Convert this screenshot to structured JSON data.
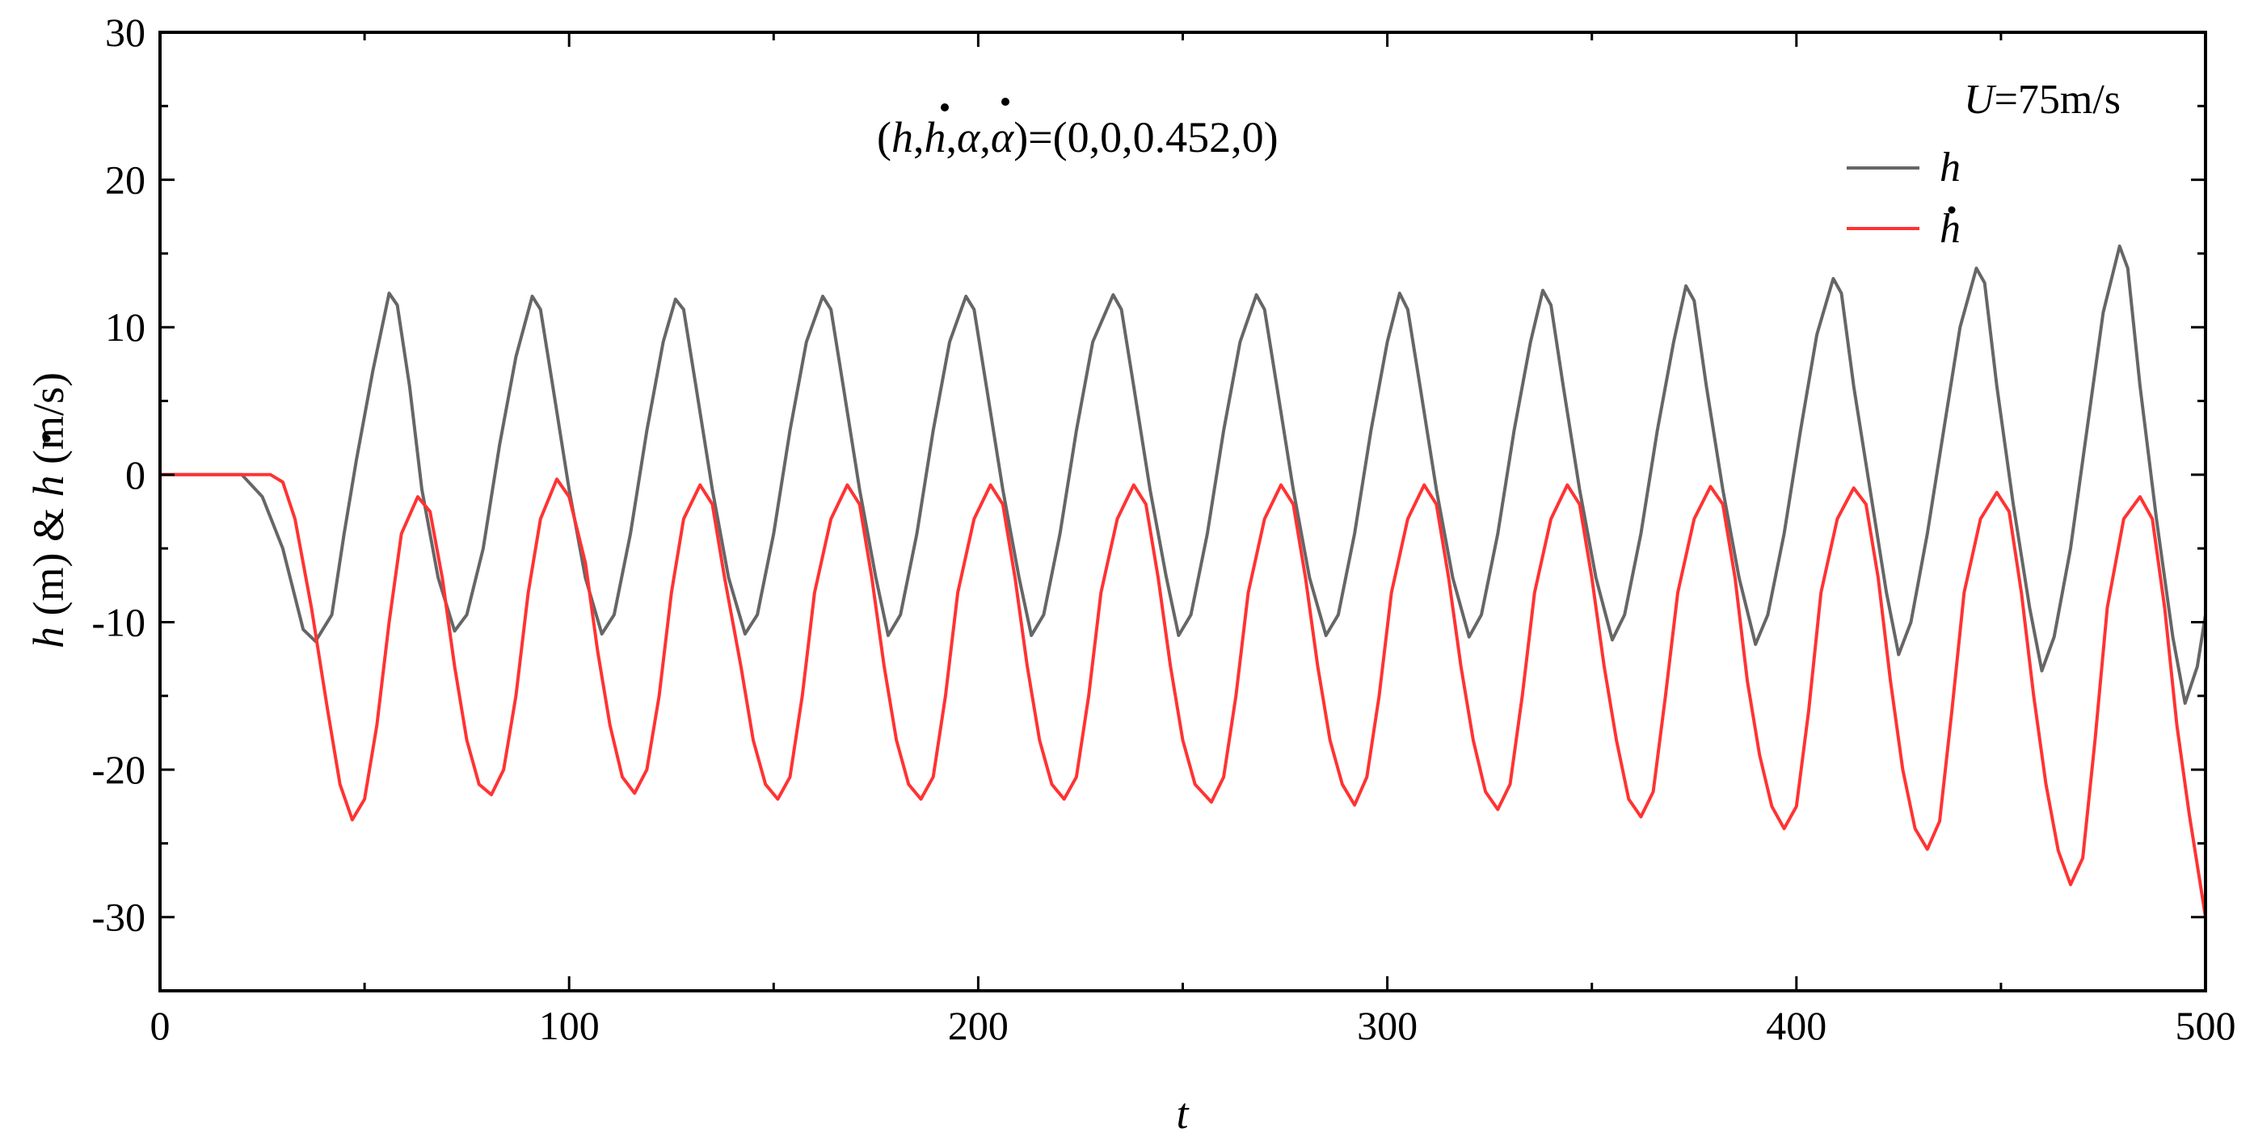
{
  "chart_data": {
    "type": "line",
    "annotation": "(h,h,α,α)=(0,0,0.452,0)",
    "xlabel": "t",
    "ylabel": "h (m) & h (m/s)",
    "xlim": [
      0,
      500
    ],
    "ylim": [
      -35,
      30
    ],
    "x_ticks": [
      "0",
      "100",
      "200",
      "300",
      "400",
      "500"
    ],
    "y_ticks": [
      "30",
      "20",
      "10",
      "0",
      "-10",
      "-20",
      "-30"
    ],
    "grid": false,
    "legend": {
      "placement": "top-right",
      "title": "U=75m/s"
    },
    "series": [
      {
        "name": "h",
        "color": "#666666",
        "points": [
          [
            0,
            0
          ],
          [
            20,
            0
          ],
          [
            25,
            -1.5
          ],
          [
            30,
            -5
          ],
          [
            35,
            -10.5
          ],
          [
            38,
            -11.3
          ],
          [
            42,
            -9.5
          ],
          [
            45,
            -4
          ],
          [
            48,
            1
          ],
          [
            52,
            7
          ],
          [
            56,
            12.3
          ],
          [
            58,
            11.5
          ],
          [
            61,
            6
          ],
          [
            64,
            -1
          ],
          [
            68,
            -7
          ],
          [
            72,
            -10.6
          ],
          [
            75,
            -9.5
          ],
          [
            79,
            -5
          ],
          [
            83,
            2
          ],
          [
            87,
            8
          ],
          [
            91,
            12.1
          ],
          [
            93,
            11.2
          ],
          [
            96,
            6
          ],
          [
            100,
            -1
          ],
          [
            104,
            -7
          ],
          [
            108,
            -10.8
          ],
          [
            111,
            -9.5
          ],
          [
            115,
            -4
          ],
          [
            119,
            3
          ],
          [
            123,
            9
          ],
          [
            126,
            11.9
          ],
          [
            128,
            11.2
          ],
          [
            131,
            6
          ],
          [
            135,
            -1
          ],
          [
            139,
            -7
          ],
          [
            143,
            -10.8
          ],
          [
            146,
            -9.5
          ],
          [
            150,
            -4
          ],
          [
            154,
            3
          ],
          [
            158,
            9
          ],
          [
            162,
            12.1
          ],
          [
            164,
            11.2
          ],
          [
            167,
            6
          ],
          [
            171,
            -1
          ],
          [
            175,
            -7
          ],
          [
            178,
            -10.9
          ],
          [
            181,
            -9.5
          ],
          [
            185,
            -4
          ],
          [
            189,
            3
          ],
          [
            193,
            9
          ],
          [
            197,
            12.1
          ],
          [
            199,
            11.2
          ],
          [
            202,
            6
          ],
          [
            206,
            -1
          ],
          [
            210,
            -7
          ],
          [
            213,
            -10.9
          ],
          [
            216,
            -9.5
          ],
          [
            220,
            -4
          ],
          [
            224,
            3
          ],
          [
            228,
            9
          ],
          [
            233,
            12.2
          ],
          [
            235,
            11.2
          ],
          [
            238,
            6
          ],
          [
            242,
            -1
          ],
          [
            246,
            -7
          ],
          [
            249,
            -10.9
          ],
          [
            252,
            -9.5
          ],
          [
            256,
            -4
          ],
          [
            260,
            3
          ],
          [
            264,
            9
          ],
          [
            268,
            12.2
          ],
          [
            270,
            11.2
          ],
          [
            273,
            6
          ],
          [
            277,
            -1
          ],
          [
            281,
            -7
          ],
          [
            285,
            -10.9
          ],
          [
            288,
            -9.5
          ],
          [
            292,
            -4
          ],
          [
            296,
            3
          ],
          [
            300,
            9
          ],
          [
            303,
            12.3
          ],
          [
            305,
            11.2
          ],
          [
            308,
            6
          ],
          [
            312,
            -1
          ],
          [
            316,
            -7
          ],
          [
            320,
            -11
          ],
          [
            323,
            -9.5
          ],
          [
            327,
            -4
          ],
          [
            331,
            3
          ],
          [
            335,
            9
          ],
          [
            338,
            12.5
          ],
          [
            340,
            11.5
          ],
          [
            343,
            6
          ],
          [
            347,
            -1
          ],
          [
            351,
            -7
          ],
          [
            355,
            -11.2
          ],
          [
            358,
            -9.5
          ],
          [
            362,
            -4
          ],
          [
            366,
            3
          ],
          [
            370,
            9
          ],
          [
            373,
            12.8
          ],
          [
            375,
            11.8
          ],
          [
            378,
            6
          ],
          [
            382,
            -1
          ],
          [
            386,
            -7
          ],
          [
            390,
            -11.5
          ],
          [
            393,
            -9.5
          ],
          [
            397,
            -4
          ],
          [
            401,
            3
          ],
          [
            405,
            9.5
          ],
          [
            409,
            13.3
          ],
          [
            411,
            12.3
          ],
          [
            414,
            6
          ],
          [
            418,
            -1
          ],
          [
            422,
            -8
          ],
          [
            425,
            -12.2
          ],
          [
            428,
            -10
          ],
          [
            432,
            -4
          ],
          [
            436,
            3
          ],
          [
            440,
            10
          ],
          [
            444,
            14
          ],
          [
            446,
            13
          ],
          [
            449,
            6
          ],
          [
            453,
            -2
          ],
          [
            457,
            -9
          ],
          [
            460,
            -13.3
          ],
          [
            463,
            -11
          ],
          [
            467,
            -5
          ],
          [
            471,
            3
          ],
          [
            475,
            11
          ],
          [
            479,
            15.5
          ],
          [
            481,
            14
          ],
          [
            484,
            6
          ],
          [
            488,
            -3
          ],
          [
            492,
            -11
          ],
          [
            495,
            -15.5
          ],
          [
            498,
            -13
          ],
          [
            500,
            -9.5
          ]
        ]
      },
      {
        "name": "h",
        "color": "#ff3333",
        "points": [
          [
            0,
            0
          ],
          [
            27,
            0
          ],
          [
            30,
            -0.5
          ],
          [
            33,
            -3
          ],
          [
            37,
            -9
          ],
          [
            41,
            -16
          ],
          [
            44,
            -21
          ],
          [
            47,
            -23.4
          ],
          [
            50,
            -22
          ],
          [
            53,
            -17
          ],
          [
            56,
            -10
          ],
          [
            59,
            -4
          ],
          [
            63,
            -1.5
          ],
          [
            66,
            -2.5
          ],
          [
            69,
            -7
          ],
          [
            72,
            -13
          ],
          [
            75,
            -18
          ],
          [
            78,
            -21
          ],
          [
            81,
            -21.7
          ],
          [
            84,
            -20
          ],
          [
            87,
            -15
          ],
          [
            90,
            -8
          ],
          [
            93,
            -3
          ],
          [
            97,
            -0.3
          ],
          [
            100,
            -1.5
          ],
          [
            104,
            -6
          ],
          [
            107,
            -12
          ],
          [
            110,
            -17
          ],
          [
            113,
            -20.5
          ],
          [
            116,
            -21.6
          ],
          [
            119,
            -20
          ],
          [
            122,
            -15
          ],
          [
            125,
            -8
          ],
          [
            128,
            -3
          ],
          [
            132,
            -0.7
          ],
          [
            135,
            -2
          ],
          [
            138,
            -7
          ],
          [
            142,
            -13
          ],
          [
            145,
            -18
          ],
          [
            148,
            -21
          ],
          [
            151,
            -22
          ],
          [
            154,
            -20.5
          ],
          [
            157,
            -15
          ],
          [
            160,
            -8
          ],
          [
            164,
            -3
          ],
          [
            168,
            -0.7
          ],
          [
            171,
            -2
          ],
          [
            174,
            -7
          ],
          [
            177,
            -13
          ],
          [
            180,
            -18
          ],
          [
            183,
            -21
          ],
          [
            186,
            -22
          ],
          [
            189,
            -20.5
          ],
          [
            192,
            -15
          ],
          [
            195,
            -8
          ],
          [
            199,
            -3
          ],
          [
            203,
            -0.7
          ],
          [
            206,
            -2
          ],
          [
            209,
            -7
          ],
          [
            212,
            -13
          ],
          [
            215,
            -18
          ],
          [
            218,
            -21
          ],
          [
            221,
            -22
          ],
          [
            224,
            -20.5
          ],
          [
            227,
            -15
          ],
          [
            230,
            -8
          ],
          [
            234,
            -3
          ],
          [
            238,
            -0.7
          ],
          [
            241,
            -2
          ],
          [
            244,
            -7
          ],
          [
            247,
            -13
          ],
          [
            250,
            -18
          ],
          [
            253,
            -21
          ],
          [
            257,
            -22.2
          ],
          [
            260,
            -20.5
          ],
          [
            263,
            -15
          ],
          [
            266,
            -8
          ],
          [
            270,
            -3
          ],
          [
            274,
            -0.7
          ],
          [
            277,
            -2
          ],
          [
            280,
            -7
          ],
          [
            283,
            -13
          ],
          [
            286,
            -18
          ],
          [
            289,
            -21
          ],
          [
            292,
            -22.4
          ],
          [
            295,
            -20.5
          ],
          [
            298,
            -15
          ],
          [
            301,
            -8
          ],
          [
            305,
            -3
          ],
          [
            309,
            -0.7
          ],
          [
            312,
            -2
          ],
          [
            315,
            -7
          ],
          [
            318,
            -13
          ],
          [
            321,
            -18
          ],
          [
            324,
            -21.5
          ],
          [
            327,
            -22.7
          ],
          [
            330,
            -21
          ],
          [
            333,
            -15
          ],
          [
            336,
            -8
          ],
          [
            340,
            -3
          ],
          [
            344,
            -0.7
          ],
          [
            347,
            -2
          ],
          [
            350,
            -7
          ],
          [
            353,
            -13
          ],
          [
            356,
            -18
          ],
          [
            359,
            -22
          ],
          [
            362,
            -23.2
          ],
          [
            365,
            -21.5
          ],
          [
            368,
            -15
          ],
          [
            371,
            -8
          ],
          [
            375,
            -3
          ],
          [
            379,
            -0.8
          ],
          [
            382,
            -2
          ],
          [
            385,
            -7
          ],
          [
            388,
            -14
          ],
          [
            391,
            -19
          ],
          [
            394,
            -22.5
          ],
          [
            397,
            -24
          ],
          [
            400,
            -22.5
          ],
          [
            403,
            -16
          ],
          [
            406,
            -8
          ],
          [
            410,
            -3
          ],
          [
            414,
            -0.9
          ],
          [
            417,
            -2
          ],
          [
            420,
            -7
          ],
          [
            423,
            -14
          ],
          [
            426,
            -20
          ],
          [
            429,
            -24
          ],
          [
            432,
            -25.4
          ],
          [
            435,
            -23.5
          ],
          [
            438,
            -16
          ],
          [
            441,
            -8
          ],
          [
            445,
            -3
          ],
          [
            449,
            -1.2
          ],
          [
            452,
            -2.5
          ],
          [
            455,
            -8
          ],
          [
            458,
            -15
          ],
          [
            461,
            -21
          ],
          [
            464,
            -25.5
          ],
          [
            467,
            -27.8
          ],
          [
            470,
            -26
          ],
          [
            473,
            -18
          ],
          [
            476,
            -9
          ],
          [
            480,
            -3
          ],
          [
            484,
            -1.5
          ],
          [
            487,
            -3
          ],
          [
            490,
            -9
          ],
          [
            493,
            -17
          ],
          [
            496,
            -23
          ],
          [
            500,
            -30
          ]
        ]
      }
    ]
  }
}
